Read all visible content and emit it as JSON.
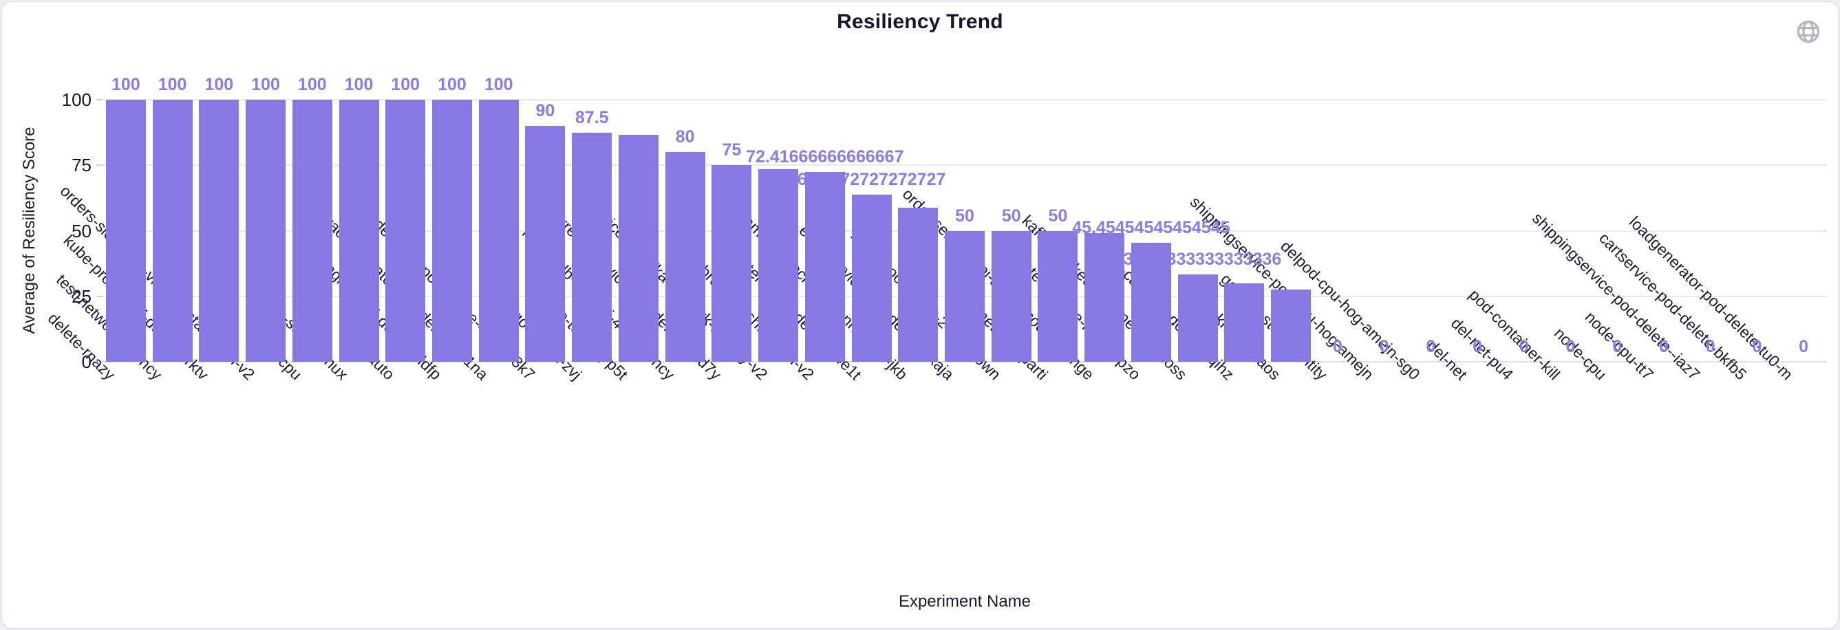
{
  "header": {
    "title": "Resiliency Trend"
  },
  "icons": {
    "globe": {
      "name": "globe-icon",
      "color": "#b1b7c3"
    }
  },
  "colors": {
    "bar": "#8878e3",
    "bar_label": "#8b7de9",
    "grid": "#e8eaef",
    "text_dark": "#15172f",
    "card_border": "#dfe3ec"
  },
  "chart_data": {
    "type": "bar",
    "title": "Resiliency Trend",
    "xlabel": "Experiment Name",
    "ylabel": "Average of Resiliency Score",
    "ylim": [
      0,
      100
    ],
    "y_ticks": [
      0,
      25,
      50,
      75,
      100
    ],
    "grid": true,
    "legend": false,
    "bars": [
      {
        "name": "delete-rnazy",
        "value": 100,
        "label": "100",
        "label_visible": true
      },
      {
        "name": "test-network-latency",
        "value": 100,
        "label": "100",
        "label_visible": true
      },
      {
        "name": "kube-proxy-pod-delete-vrktv",
        "value": 100,
        "label": "100",
        "label_visible": true
      },
      {
        "name": "orders-slowness-via-cpu-starvation-v2",
        "value": 100,
        "label": "100",
        "label_visible": true
      },
      {
        "name": "linux-cpu",
        "value": 100,
        "label": "100",
        "label_visible": true
      },
      {
        "name": "cpu-stress-linux",
        "value": 100,
        "label": "100",
        "label_visible": true
      },
      {
        "name": "pod-auto",
        "value": 100,
        "label": "100",
        "label_visible": true
      },
      {
        "name": "nginx-pod-delete-pldfp",
        "value": 100,
        "label": "100",
        "label_visible": true
      },
      {
        "name": "dynatrace-operator-pod-delete-zx1na",
        "value": 100,
        "label": "100",
        "label_visible": true
      },
      {
        "name": "smr-delegate-pod-delete-437az-3k7",
        "value": 90,
        "label": "90",
        "label_visible": true
      },
      {
        "name": "mongodb-test-zvj",
        "value": 87.5,
        "label": "87.5",
        "label_visible": true
      },
      {
        "name": "solace-test-zvj-p5t",
        "value": 86.6,
        "label": "",
        "label_visible": false
      },
      {
        "name": "mongodb-test-zvj-4c1-latency",
        "value": 80,
        "label": "80",
        "label_visible": true
      },
      {
        "name": "currencyservice-pod-delete-axd7y",
        "value": 75,
        "label": "75",
        "label_visible": true
      },
      {
        "name": "invoice-to-kafka-network-latency-v2",
        "value": 73.5,
        "label": "",
        "label_visible": false
      },
      {
        "name": "kafka-broker-1-shutdown-v2",
        "value": 72.41666666666667,
        "label": "72.41666666666667",
        "label_visible": true
      },
      {
        "name": "frontend-pod-delete-e4e1t",
        "value": 63.7272727272727,
        "label": "63.7272727272727",
        "label_visible": true
      },
      {
        "name": "lambda-block-tcp-connection-jkb",
        "value": 58.8,
        "label": "",
        "label_visible": false
      },
      {
        "name": "emailservice-pod-delete-pxaja",
        "value": 50,
        "label": "50",
        "label_visible": true
      },
      {
        "name": "kafka-zookeeper-2-shutdown",
        "value": 50,
        "label": "50",
        "label_visible": true
      },
      {
        "name": "pod-network-parti",
        "value": 50,
        "label": "50",
        "label_visible": true
      },
      {
        "name": "order-service-api-status-code-change",
        "value": 49,
        "label": "",
        "label_visible": false
      },
      {
        "name": "test-probe-logger-pzo",
        "value": 45.45454545454545,
        "label": "45.45454545454545",
        "label_visible": true
      },
      {
        "name": "kafka-zookeeper-2-network-loss",
        "value": 33.333333333333336,
        "label": "33.333333333333336",
        "label_visible": true
      },
      {
        "name": "redis-cart-pod-delete-kqihz",
        "value": 30,
        "label": "",
        "label_visible": false
      },
      {
        "name": "az-blackhole-chaos",
        "value": 27.5,
        "label": "",
        "label_visible": false
      },
      {
        "name": "gcp-vm-stop-identity",
        "value": 0,
        "label": "0",
        "label_visible": true
      },
      {
        "name": "shippingservice-pod-cpu-hog-amejn",
        "value": 0,
        "label": "0",
        "label_visible": true
      },
      {
        "name": "delpod-cpu-hog-amejn-sg0",
        "value": 0,
        "label": "0",
        "label_visible": true
      },
      {
        "name": "del-net",
        "value": 0,
        "label": "0",
        "label_visible": true
      },
      {
        "name": "del-net-pu4",
        "value": 0,
        "label": "0",
        "label_visible": true
      },
      {
        "name": "pod-container-kill",
        "value": 0,
        "label": "0",
        "label_visible": true
      },
      {
        "name": "node-cpu",
        "value": 0,
        "label": "0",
        "label_visible": true
      },
      {
        "name": "node-cpu-tt7",
        "value": 0,
        "label": "0",
        "label_visible": true
      },
      {
        "name": "shippingservice-pod-delete--iaz7",
        "value": 0,
        "label": "0",
        "label_visible": true
      },
      {
        "name": "cartservice-pod-delete-bkfb5",
        "value": 0,
        "label": "0",
        "label_visible": true
      },
      {
        "name": "loadgenerator-pod-delete-tu0-m",
        "value": 0,
        "label": "0",
        "label_visible": true
      }
    ]
  }
}
